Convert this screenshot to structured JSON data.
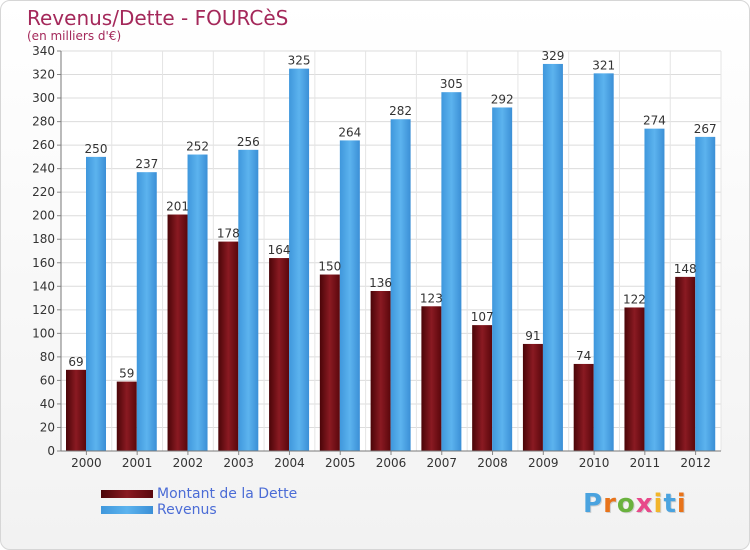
{
  "header": {
    "title": "Revenus/Dette - FOURCèS",
    "subtitle": "(en milliers d'€)"
  },
  "logo": {
    "text": "Proxiti",
    "colors": [
      "#4aa3df",
      "#e8731a",
      "#6ab23e",
      "#e84a8a",
      "#f2b52a",
      "#4aa3df",
      "#e8731a"
    ]
  },
  "legend": {
    "position": "bottom-left",
    "items": [
      {
        "label": "Montant de la Dette",
        "color": "#6e0a12"
      },
      {
        "label": "Revenus",
        "color": "#4aa3e6"
      }
    ]
  },
  "chart_data": {
    "type": "bar",
    "title": "Revenus/Dette - FOURCèS",
    "subtitle": "(en milliers d'€)",
    "categories": [
      "2000",
      "2001",
      "2002",
      "2003",
      "2004",
      "2005",
      "2006",
      "2007",
      "2008",
      "2009",
      "2010",
      "2011",
      "2012"
    ],
    "series": [
      {
        "name": "Montant de la Dette",
        "color": "#6e0a12",
        "values": [
          69,
          59,
          201,
          178,
          164,
          150,
          136,
          123,
          107,
          91,
          74,
          122,
          148
        ]
      },
      {
        "name": "Revenus",
        "color": "#4aa3e6",
        "values": [
          250,
          237,
          252,
          256,
          325,
          264,
          282,
          305,
          292,
          329,
          321,
          274,
          267
        ]
      }
    ],
    "ylim": [
      0,
      340
    ],
    "yticks": [
      0,
      20,
      40,
      60,
      80,
      100,
      120,
      140,
      160,
      180,
      200,
      220,
      240,
      260,
      280,
      300,
      320,
      340
    ],
    "grid": true,
    "legend_position": "bottom-left"
  }
}
